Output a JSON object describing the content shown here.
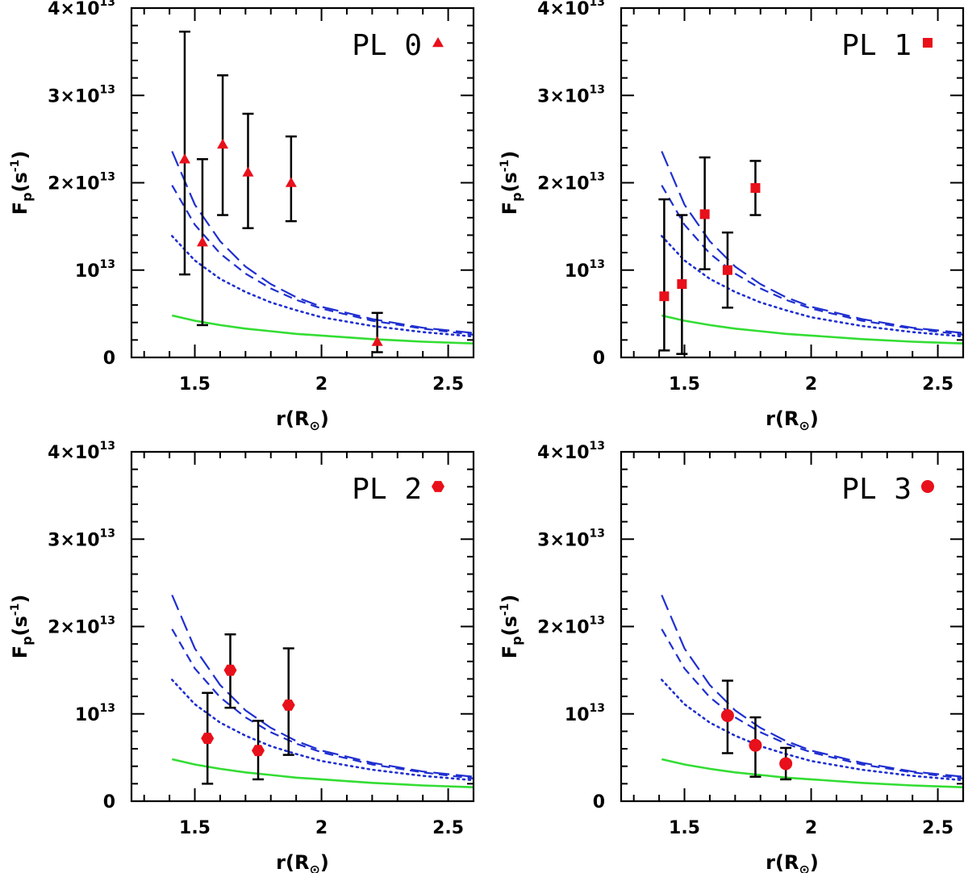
{
  "chart_data": [
    {
      "type": "scatter",
      "legend": "PL 0",
      "marker": "triangle",
      "xlabel": "r(R",
      "xlabel_sub": "⊙",
      "xlabel_close": ")",
      "ylabel": "F",
      "ylabel_sub": "p",
      "ylabel_rest": "(s",
      "ylabel_sup": "-1",
      "ylabel_close": ")",
      "xlim": [
        1.25,
        2.6
      ],
      "ylim": [
        0,
        40
      ],
      "y_scale_note": "values in units of 10^12",
      "x_ticks": [
        1.5,
        2,
        2.5
      ],
      "x_tick_labels": [
        "1.5",
        "2",
        "2.5"
      ],
      "y_ticks": [
        0,
        10,
        20,
        30,
        40
      ],
      "y_tick_labels": [
        {
          "base": "0",
          "sup": ""
        },
        {
          "base": "10",
          "sup": "13"
        },
        {
          "base": "2×10",
          "sup": "13"
        },
        {
          "base": "3×10",
          "sup": "13"
        },
        {
          "base": "4×10",
          "sup": "13"
        }
      ],
      "points": [
        {
          "x": 1.46,
          "y": 22.7,
          "err_low": 9.5,
          "err_high": 37.3
        },
        {
          "x": 1.53,
          "y": 13.2,
          "err_low": 3.7,
          "err_high": 22.7
        },
        {
          "x": 1.61,
          "y": 24.4,
          "err_low": 16.3,
          "err_high": 32.3
        },
        {
          "x": 1.71,
          "y": 21.2,
          "err_low": 14.8,
          "err_high": 27.9
        },
        {
          "x": 1.88,
          "y": 20.0,
          "err_low": 15.6,
          "err_high": 25.3
        },
        {
          "x": 2.22,
          "y": 1.8,
          "err_low": 0.6,
          "err_high": 5.1
        }
      ]
    },
    {
      "type": "scatter",
      "legend": "PL 1",
      "marker": "square",
      "xlabel": "r(R",
      "xlabel_sub": "⊙",
      "xlabel_close": ")",
      "ylabel": "F",
      "ylabel_sub": "p",
      "ylabel_rest": "(s",
      "ylabel_sup": "-1",
      "ylabel_close": ")",
      "xlim": [
        1.25,
        2.6
      ],
      "ylim": [
        0,
        40
      ],
      "y_scale_note": "values in units of 10^12",
      "x_ticks": [
        1.5,
        2,
        2.5
      ],
      "x_tick_labels": [
        "1.5",
        "2",
        "2.5"
      ],
      "y_ticks": [
        0,
        10,
        20,
        30,
        40
      ],
      "y_tick_labels": [
        {
          "base": "0",
          "sup": ""
        },
        {
          "base": "10",
          "sup": "13"
        },
        {
          "base": "2×10",
          "sup": "13"
        },
        {
          "base": "3×10",
          "sup": "13"
        },
        {
          "base": "4×10",
          "sup": "13"
        }
      ],
      "points": [
        {
          "x": 1.42,
          "y": 7.0,
          "err_low": 0.8,
          "err_high": 18.1
        },
        {
          "x": 1.49,
          "y": 8.4,
          "err_low": 0.4,
          "err_high": 16.3
        },
        {
          "x": 1.58,
          "y": 16.4,
          "err_low": 10.1,
          "err_high": 22.9
        },
        {
          "x": 1.67,
          "y": 10.0,
          "err_low": 5.7,
          "err_high": 14.3
        },
        {
          "x": 1.78,
          "y": 19.4,
          "err_low": 16.3,
          "err_high": 22.5
        }
      ]
    },
    {
      "type": "scatter",
      "legend": "PL 2",
      "marker": "hexagon",
      "xlabel": "r(R",
      "xlabel_sub": "⊙",
      "xlabel_close": ")",
      "ylabel": "F",
      "ylabel_sub": "p",
      "ylabel_rest": "(s",
      "ylabel_sup": "-1",
      "ylabel_close": ")",
      "xlim": [
        1.25,
        2.6
      ],
      "ylim": [
        0,
        40
      ],
      "y_scale_note": "values in units of 10^12",
      "x_ticks": [
        1.5,
        2,
        2.5
      ],
      "x_tick_labels": [
        "1.5",
        "2",
        "2.5"
      ],
      "y_ticks": [
        0,
        10,
        20,
        30,
        40
      ],
      "y_tick_labels": [
        {
          "base": "0",
          "sup": ""
        },
        {
          "base": "10",
          "sup": "13"
        },
        {
          "base": "2×10",
          "sup": "13"
        },
        {
          "base": "3×10",
          "sup": "13"
        },
        {
          "base": "4×10",
          "sup": "13"
        }
      ],
      "points": [
        {
          "x": 1.55,
          "y": 7.2,
          "err_low": 2.0,
          "err_high": 12.4
        },
        {
          "x": 1.64,
          "y": 15.0,
          "err_low": 10.7,
          "err_high": 19.1
        },
        {
          "x": 1.75,
          "y": 5.8,
          "err_low": 2.5,
          "err_high": 9.2
        },
        {
          "x": 1.87,
          "y": 11.0,
          "err_low": 5.3,
          "err_high": 17.5
        }
      ]
    },
    {
      "type": "scatter",
      "legend": "PL 3",
      "marker": "circle",
      "xlabel": "r(R",
      "xlabel_sub": "⊙",
      "xlabel_close": ")",
      "ylabel": "F",
      "ylabel_sub": "p",
      "ylabel_rest": "(s",
      "ylabel_sup": "-1",
      "ylabel_close": ")",
      "xlim": [
        1.25,
        2.6
      ],
      "ylim": [
        0,
        40
      ],
      "y_scale_note": "values in units of 10^12",
      "x_ticks": [
        1.5,
        2,
        2.5
      ],
      "x_tick_labels": [
        "1.5",
        "2",
        "2.5"
      ],
      "y_ticks": [
        0,
        10,
        20,
        30,
        40
      ],
      "y_tick_labels": [
        {
          "base": "0",
          "sup": ""
        },
        {
          "base": "10",
          "sup": "13"
        },
        {
          "base": "2×10",
          "sup": "13"
        },
        {
          "base": "3×10",
          "sup": "13"
        },
        {
          "base": "4×10",
          "sup": "13"
        }
      ],
      "points": [
        {
          "x": 1.67,
          "y": 9.8,
          "err_low": 5.5,
          "err_high": 13.8
        },
        {
          "x": 1.78,
          "y": 6.4,
          "err_low": 2.8,
          "err_high": 9.6
        },
        {
          "x": 1.9,
          "y": 4.3,
          "err_low": 2.5,
          "err_high": 6.1
        }
      ]
    }
  ],
  "model_curves": [
    {
      "style": "long-dash",
      "color": "#1f2fd0",
      "x": [
        1.41,
        1.5,
        1.6,
        1.7,
        1.8,
        1.9,
        2.0,
        2.2,
        2.4,
        2.6
      ],
      "y": [
        23.6,
        17.5,
        13.3,
        10.4,
        8.4,
        6.9,
        5.8,
        4.4,
        3.4,
        2.8
      ]
    },
    {
      "style": "dash",
      "color": "#1f2fd0",
      "x": [
        1.41,
        1.5,
        1.6,
        1.7,
        1.8,
        1.9,
        2.0,
        2.2,
        2.4,
        2.6
      ],
      "y": [
        19.7,
        15.2,
        11.9,
        9.6,
        7.9,
        6.6,
        5.6,
        4.2,
        3.3,
        2.6
      ]
    },
    {
      "style": "dotted",
      "color": "#1f2fd0",
      "x": [
        1.41,
        1.5,
        1.6,
        1.7,
        1.8,
        1.9,
        2.0,
        2.2,
        2.4,
        2.6
      ],
      "y": [
        13.9,
        11.1,
        9.0,
        7.5,
        6.3,
        5.4,
        4.6,
        3.6,
        2.9,
        2.4
      ]
    },
    {
      "style": "solid",
      "color": "#33dd33",
      "x": [
        1.41,
        1.5,
        1.6,
        1.7,
        1.8,
        1.9,
        2.0,
        2.2,
        2.4,
        2.6
      ],
      "y": [
        4.8,
        4.2,
        3.7,
        3.3,
        3.0,
        2.7,
        2.5,
        2.1,
        1.8,
        1.6
      ]
    }
  ],
  "colors": {
    "marker": "#e8101a",
    "errorbar": "#000000",
    "frame": "#000000"
  }
}
